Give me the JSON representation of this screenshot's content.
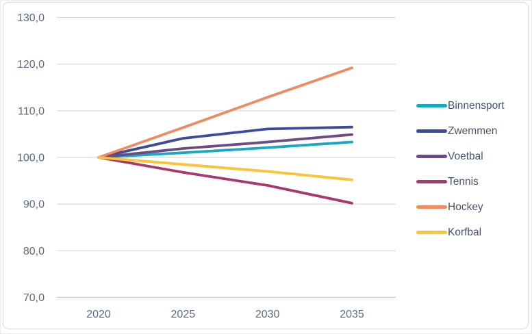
{
  "chart_data": {
    "type": "line",
    "x": [
      2020,
      2025,
      2030,
      2035
    ],
    "x_tick_labels": [
      "2020",
      "2025",
      "2030",
      "2035"
    ],
    "y_ticks": [
      70,
      80,
      90,
      100,
      110,
      120,
      130
    ],
    "y_tick_labels": [
      "70,0",
      "80,0",
      "90,0",
      "100,0",
      "110,0",
      "120,0",
      "130,0"
    ],
    "ylim": [
      70,
      130
    ],
    "title": "",
    "xlabel": "",
    "ylabel": "",
    "grid": true,
    "legend_position": "right",
    "series": [
      {
        "name": "Binnensport",
        "color": "#17a9c2",
        "values": [
          100,
          101.0,
          102.1,
          103.3
        ]
      },
      {
        "name": "Zwemmen",
        "color": "#3b4ca0",
        "values": [
          100,
          104.1,
          106.1,
          106.5
        ]
      },
      {
        "name": "Voetbal",
        "color": "#6a4c80",
        "values": [
          100,
          101.9,
          103.3,
          104.9
        ]
      },
      {
        "name": "Tennis",
        "color": "#a8386e",
        "values": [
          100,
          96.8,
          94.0,
          90.2
        ]
      },
      {
        "name": "Hockey",
        "color": "#f08b5f",
        "values": [
          100,
          106.4,
          112.9,
          119.2
        ]
      },
      {
        "name": "Korfbal",
        "color": "#fbc335",
        "values": [
          100,
          98.5,
          97.0,
          95.2
        ]
      }
    ]
  },
  "colors": {
    "background": "#ffffff",
    "gridline": "#d9d9d9",
    "axis_line": "#c3c7cc",
    "tick_text": "#5a6b7e",
    "legend_text": "#44546a",
    "chart_border": "#d9d9d9"
  }
}
